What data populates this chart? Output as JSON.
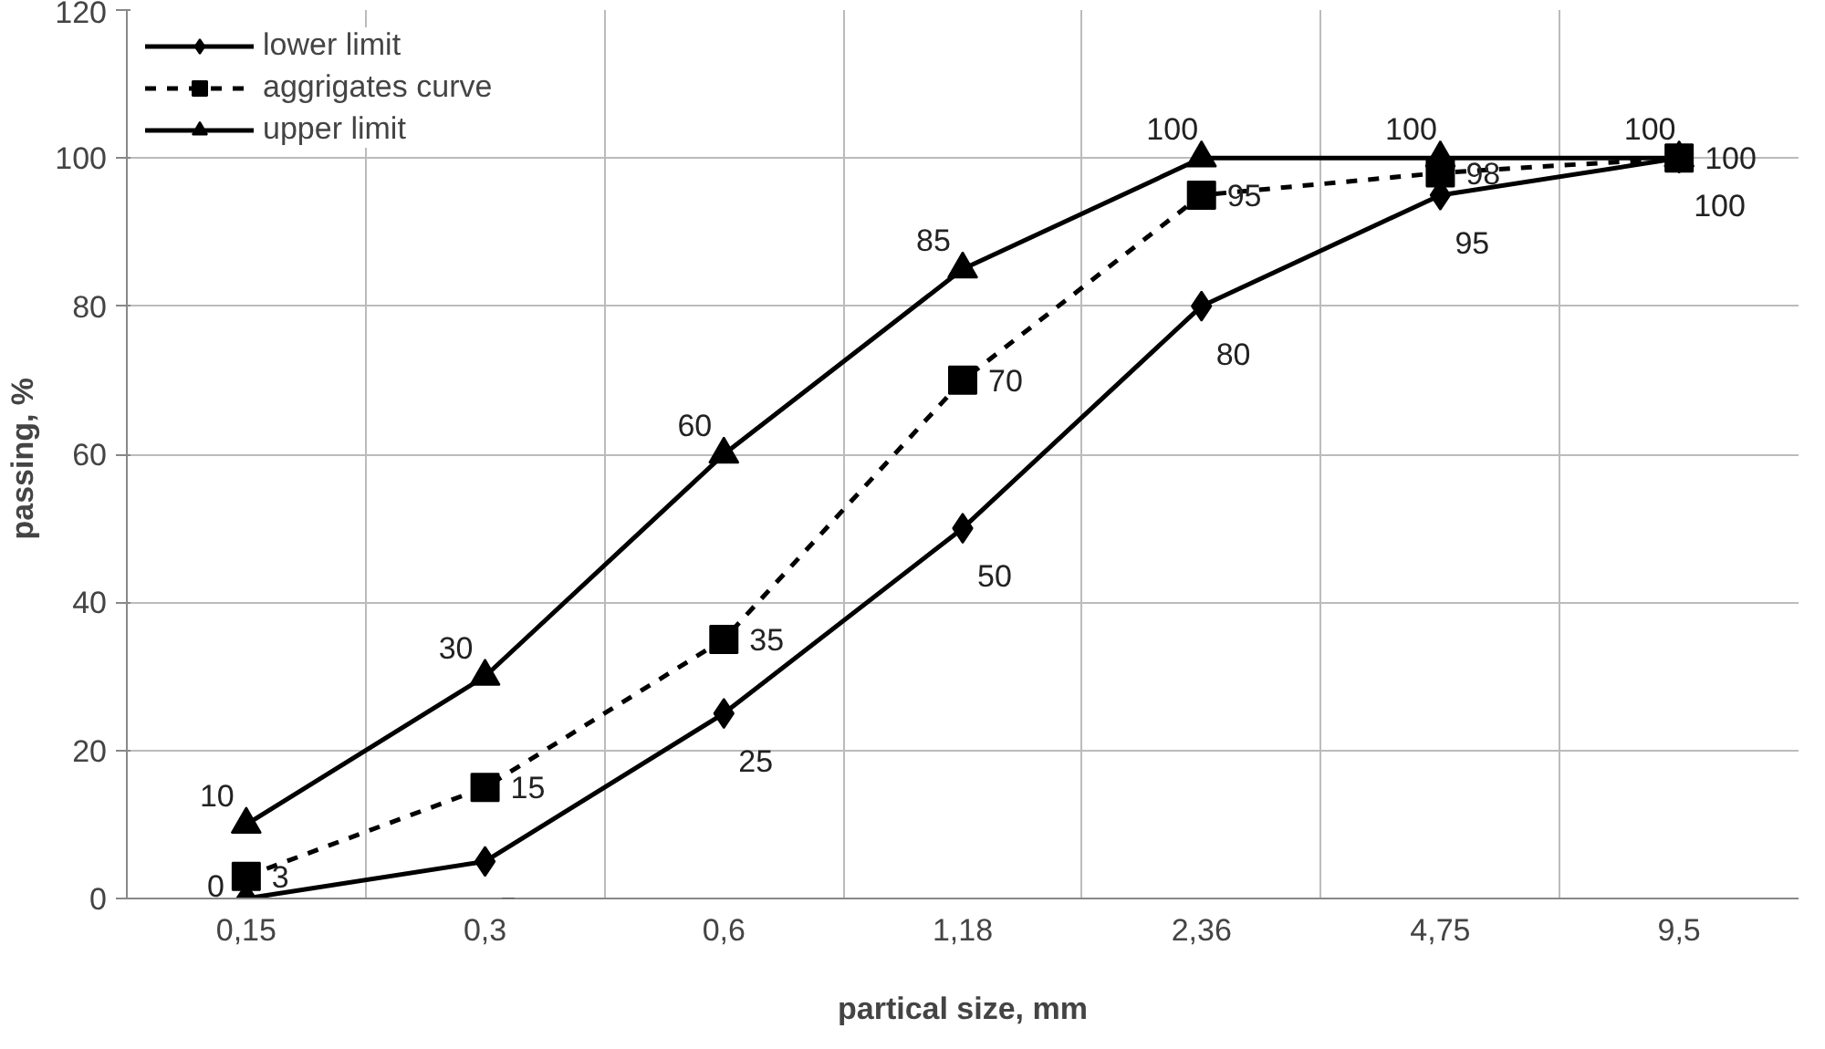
{
  "chart_data": {
    "type": "line",
    "xlabel": "partical size, mm",
    "ylabel": "passing,  %",
    "categories": [
      "0,15",
      "0,3",
      "0,6",
      "1,18",
      "2,36",
      "4,75",
      "9,5"
    ],
    "series": [
      {
        "name": "lower limit",
        "color": "#000000",
        "marker": "diamond",
        "line_style": "solid",
        "values": [
          0,
          5,
          25,
          50,
          80,
          95,
          100
        ]
      },
      {
        "name": "aggrigates curve",
        "color": "#000000",
        "marker": "square",
        "line_style": "dashed",
        "values": [
          3,
          15,
          35,
          70,
          95,
          98,
          100
        ]
      },
      {
        "name": "upper limit",
        "color": "#000000",
        "marker": "triangle",
        "line_style": "solid",
        "values": [
          10,
          30,
          60,
          85,
          100,
          100,
          100
        ]
      }
    ],
    "ylim": [
      0,
      120
    ],
    "yticks": [
      0,
      20,
      40,
      60,
      80,
      100,
      120
    ],
    "grid": true,
    "legend": "top left",
    "data_labels": true
  }
}
